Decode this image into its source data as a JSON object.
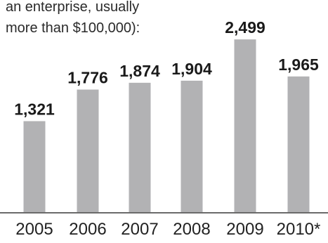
{
  "chart_data": {
    "type": "bar",
    "subtitle_lines": [
      "an enterprise, usually",
      "more than $100,000):"
    ],
    "categories": [
      "2005",
      "2006",
      "2007",
      "2008",
      "2009",
      "2010*"
    ],
    "values": [
      1321,
      1776,
      1874,
      1904,
      2499,
      1965
    ],
    "value_labels": [
      "1,321",
      "1,776",
      "1,874",
      "1,904",
      "2,499",
      "1,965"
    ],
    "xlabel": "",
    "ylabel": "",
    "ylim": [
      0,
      2600
    ],
    "grid": false,
    "legend": "none",
    "colors": {
      "bar": "#b2b2b4",
      "text": "#1a1a1a",
      "baseline": "#6a6a6a"
    }
  }
}
